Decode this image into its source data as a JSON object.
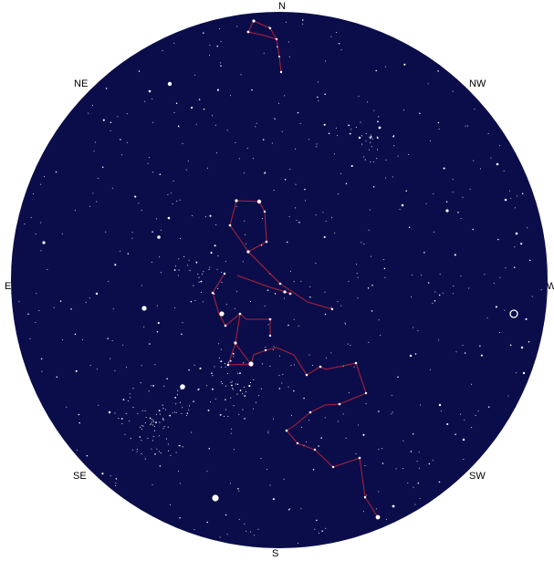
{
  "compass": {
    "n": "N",
    "ne": "NE",
    "e": "E",
    "se": "SE",
    "s": "S",
    "sw": "SW",
    "w": "W",
    "nw": "NW"
  },
  "colors": {
    "sky": "#0b0d4b",
    "star": "#ffffff",
    "constellation_line": "#b22234",
    "label": "#000000"
  },
  "icons": {
    "planet_marker": "open-circle-icon"
  }
}
